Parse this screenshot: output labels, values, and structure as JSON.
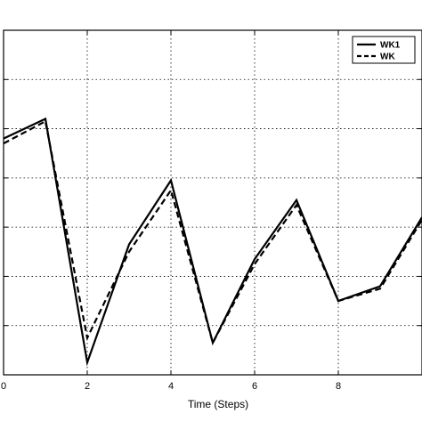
{
  "chart_data": {
    "type": "line",
    "title": "",
    "xlabel": "Time (Steps)",
    "ylabel": "",
    "xlim": [
      0,
      10
    ],
    "ylim": [
      0,
      7
    ],
    "x_ticks": [
      "0",
      "2",
      "4",
      "6",
      "8"
    ],
    "grid": true,
    "legend_position": "top-right",
    "series": [
      {
        "name": "WK1",
        "style": "solid",
        "color": "#000000",
        "x": [
          0,
          1,
          2,
          3,
          4,
          5,
          6,
          7,
          8,
          9,
          10
        ],
        "y": [
          4.8,
          5.2,
          0.25,
          2.65,
          3.95,
          0.65,
          2.35,
          3.55,
          1.5,
          1.8,
          3.2
        ]
      },
      {
        "name": "WK",
        "style": "dashed",
        "color": "#000000",
        "x": [
          0,
          1,
          2,
          3,
          4,
          5,
          6,
          7,
          8,
          9,
          10
        ],
        "y": [
          4.7,
          5.15,
          0.75,
          2.5,
          3.75,
          0.65,
          2.25,
          3.45,
          1.5,
          1.75,
          3.15
        ]
      }
    ]
  }
}
